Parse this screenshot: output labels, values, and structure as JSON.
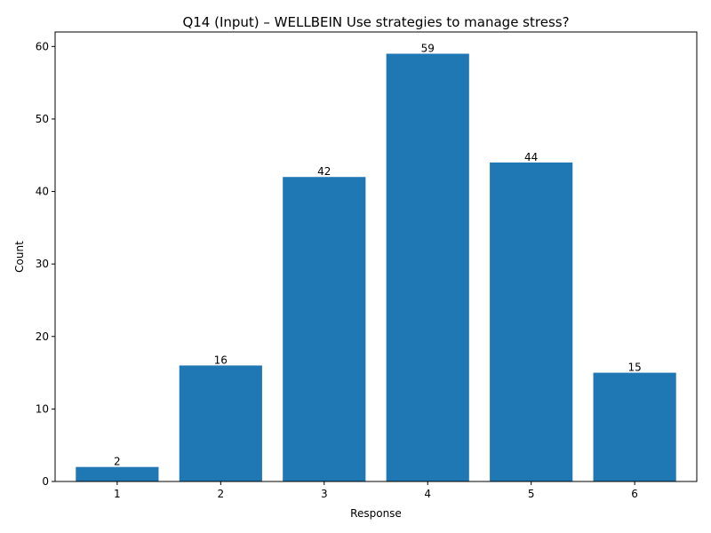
{
  "chart_data": {
    "type": "bar",
    "title": "Q14 (Input) – WELLBEIN Use strategies to manage stress?",
    "xlabel": "Response",
    "ylabel": "Count",
    "categories": [
      "1",
      "2",
      "3",
      "4",
      "5",
      "6"
    ],
    "values": [
      2,
      16,
      42,
      59,
      44,
      15
    ],
    "ylim": [
      0,
      62
    ],
    "yticks": [
      0,
      10,
      20,
      30,
      40,
      50,
      60
    ],
    "grid": false,
    "legend": "none",
    "bar_color": "#1f77b4"
  }
}
